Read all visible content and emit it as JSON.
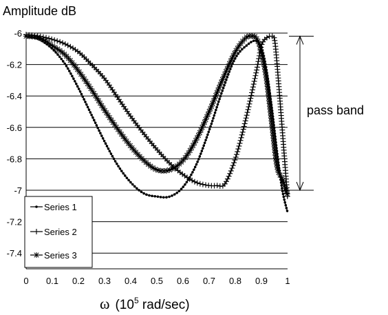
{
  "chart_data": {
    "type": "line",
    "ylabel": "Amplitude dB",
    "xlabel": {
      "symbol": "ω",
      "unit_prefix": "(10",
      "unit_exponent": "5",
      "unit_suffix": " rad/sec)"
    },
    "xlim": [
      0,
      1
    ],
    "ylim": [
      -7.5,
      -6
    ],
    "x_ticks": [
      "0",
      "0.1",
      "0.2",
      "0.3",
      "0.4",
      "0.5",
      "0.6",
      "0.7",
      "0.8",
      "0.9",
      "1"
    ],
    "y_ticks": [
      "-6",
      "-6.2",
      "-6.4",
      "-6.6",
      "-6.8",
      "-7",
      "-7.2",
      "-7.4"
    ],
    "grid": "horizontal",
    "legend_position": "bottom-left",
    "annotation": {
      "text": "pass band",
      "from_y": -6.02,
      "to_y": -7.0
    },
    "series": [
      {
        "name": "Series 1",
        "marker": "dot",
        "x": [
          0,
          0.05,
          0.1,
          0.15,
          0.2,
          0.25,
          0.3,
          0.35,
          0.4,
          0.45,
          0.5,
          0.55,
          0.6,
          0.65,
          0.7,
          0.75,
          0.8,
          0.85,
          0.88,
          0.9,
          0.92,
          0.94,
          0.96,
          0.98,
          1.0
        ],
        "y": [
          -6.02,
          -6.04,
          -6.1,
          -6.2,
          -6.35,
          -6.52,
          -6.69,
          -6.84,
          -6.95,
          -7.02,
          -7.04,
          -7.04,
          -6.98,
          -6.84,
          -6.62,
          -6.37,
          -6.16,
          -6.07,
          -6.05,
          -6.1,
          -6.25,
          -6.48,
          -6.76,
          -7.0,
          -7.14
        ]
      },
      {
        "name": "Series 2",
        "marker": "plus",
        "x": [
          0,
          0.05,
          0.1,
          0.15,
          0.2,
          0.25,
          0.3,
          0.35,
          0.4,
          0.45,
          0.5,
          0.55,
          0.6,
          0.65,
          0.7,
          0.73,
          0.76,
          0.8,
          0.84,
          0.88,
          0.9,
          0.92,
          0.94,
          0.95,
          0.96,
          0.98,
          1.0
        ],
        "y": [
          -6.01,
          -6.02,
          -6.04,
          -6.07,
          -6.12,
          -6.2,
          -6.29,
          -6.41,
          -6.53,
          -6.64,
          -6.74,
          -6.83,
          -6.9,
          -6.95,
          -6.97,
          -6.97,
          -6.96,
          -6.8,
          -6.55,
          -6.25,
          -6.08,
          -6.03,
          -6.02,
          -6.04,
          -6.2,
          -6.62,
          -7.05
        ]
      },
      {
        "name": "Series 3",
        "marker": "star",
        "x": [
          0,
          0.05,
          0.1,
          0.15,
          0.2,
          0.25,
          0.3,
          0.35,
          0.4,
          0.45,
          0.5,
          0.55,
          0.6,
          0.65,
          0.7,
          0.75,
          0.8,
          0.84,
          0.86,
          0.88,
          0.9,
          0.92,
          0.94,
          0.96,
          0.98,
          1.0
        ],
        "y": [
          -6.02,
          -6.03,
          -6.08,
          -6.14,
          -6.24,
          -6.36,
          -6.49,
          -6.61,
          -6.72,
          -6.81,
          -6.87,
          -6.87,
          -6.81,
          -6.68,
          -6.5,
          -6.3,
          -6.12,
          -6.03,
          -6.02,
          -6.03,
          -6.12,
          -6.3,
          -6.58,
          -6.85,
          -6.93,
          -7.03
        ]
      }
    ]
  }
}
